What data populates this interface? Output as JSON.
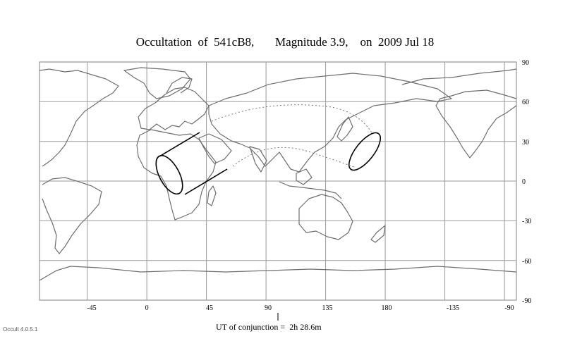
{
  "title": "Occultation  of  541cB8,       Magnitude 3.9,    on  2009 Jul 18",
  "lon_ticks": [
    "-45",
    "0",
    "45",
    "90",
    "135",
    "180",
    "-135",
    "-90"
  ],
  "lat_ticks": [
    "90",
    "60",
    "30",
    "0",
    "-30",
    "-60",
    "-90"
  ],
  "conjunction_label": "UT of conjunction =  2h 28.6m",
  "version": "Occult 4.0.5.1",
  "colors": {
    "grid": "#9a9a9a",
    "coast": "#6e6e6e",
    "path": "#000000",
    "frame": "#808080"
  },
  "map_range": {
    "lon_start": -70,
    "lon_end": 290,
    "lat_top": 90,
    "lat_bottom": -90
  }
}
